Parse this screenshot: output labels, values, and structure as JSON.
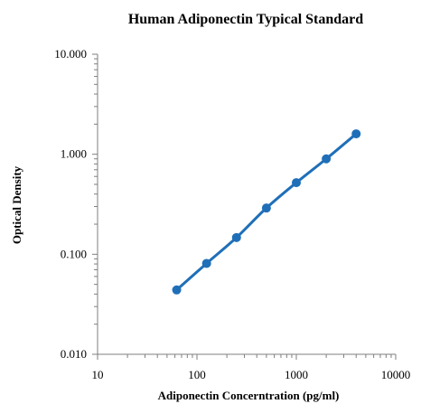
{
  "chart_data": {
    "type": "scatter",
    "title": "Human Adiponectin Typical Standard",
    "xlabel": "Adiponectin Concerntration (pg/ml)",
    "ylabel": "Optical Density",
    "x_scale": "log",
    "y_scale": "log",
    "xlim": [
      10,
      10000
    ],
    "ylim": [
      0.01,
      10
    ],
    "x_ticks": [
      10,
      100,
      1000,
      10000
    ],
    "x_tick_labels": [
      "10",
      "100",
      "1000",
      "10000"
    ],
    "y_ticks": [
      0.01,
      0.1,
      1,
      10
    ],
    "y_tick_labels": [
      "0.010",
      "0.100",
      "1.000",
      "10.000"
    ],
    "grid": false,
    "legend": "none",
    "series": [
      {
        "color": "#1f6fb8",
        "x": [
          62.5,
          125,
          250,
          500,
          1000,
          2000,
          4000
        ],
        "y": [
          0.044,
          0.081,
          0.147,
          0.29,
          0.52,
          0.9,
          1.6
        ]
      }
    ]
  }
}
